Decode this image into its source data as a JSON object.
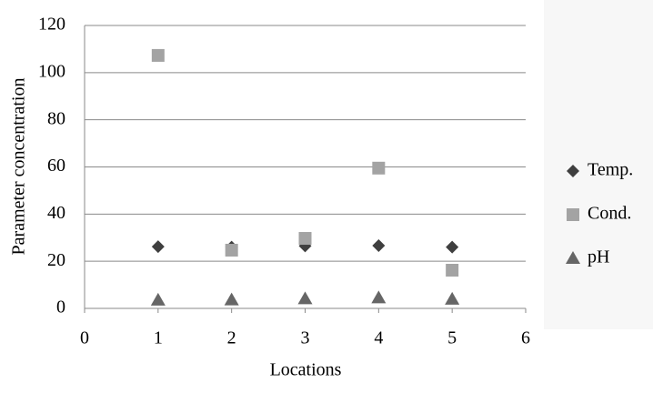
{
  "chart_data": {
    "type": "scatter",
    "x_label": "Locations",
    "y_label": "Parameter concentration",
    "x": [
      1,
      2,
      3,
      4,
      5
    ],
    "series": [
      {
        "name": "Temp.",
        "color": "#3f3f3f",
        "marker": "diamond",
        "values": [
          26.2,
          26,
          26.5,
          26.6,
          26
        ]
      },
      {
        "name": "Cond.",
        "color": "#a3a3a3",
        "marker": "square",
        "values": [
          107.3,
          24.7,
          29.7,
          59.5,
          16.2
        ]
      },
      {
        "name": "pH",
        "color": "#666666",
        "marker": "triangle",
        "values": [
          3.5,
          3.6,
          4.1,
          4.5,
          3.9
        ]
      }
    ],
    "xlim": [
      0,
      6
    ],
    "xticks": [
      0,
      1,
      2,
      3,
      4,
      5,
      6
    ],
    "ylim": [
      0,
      120
    ],
    "yticks": [
      0,
      20,
      40,
      60,
      80,
      100,
      120
    ],
    "grid": true,
    "legend": "right"
  }
}
